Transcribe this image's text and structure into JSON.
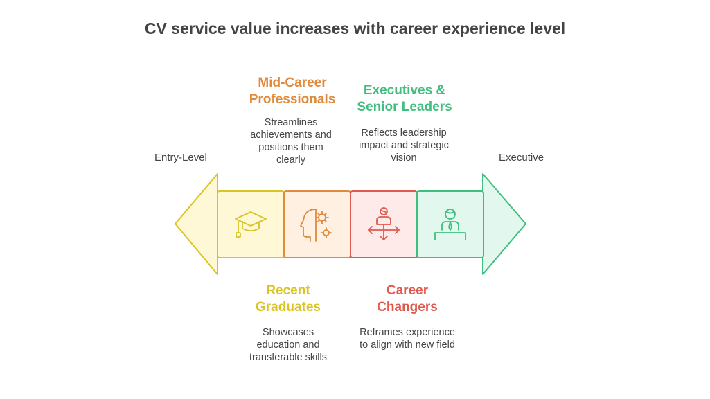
{
  "title": "CV service value increases with career experience level",
  "axis": {
    "start_label": "Entry-Level",
    "end_label": "Executive"
  },
  "stages": [
    {
      "heading": "Recent Graduates",
      "description": "Showcases education and transferable skills",
      "icon": "graduation-cap-icon",
      "color": "#d9c423",
      "fill": "#fff8d6"
    },
    {
      "heading": "Mid-Career Professionals",
      "description": "Streamlines achievements and positions them clearly",
      "icon": "head-gears-icon",
      "color": "#e08a3c",
      "fill": "#fff0e2"
    },
    {
      "heading": "Career Changers",
      "description": "Reframes experience to align with new field",
      "icon": "person-crossroads-icon",
      "color": "#e0594f",
      "fill": "#ffeaea"
    },
    {
      "heading": "Executives & Senior Leaders",
      "description": "Reflects leadership impact and strategic vision",
      "icon": "executive-at-desk-icon",
      "color": "#3fbf7f",
      "fill": "#e2f8ee"
    }
  ]
}
